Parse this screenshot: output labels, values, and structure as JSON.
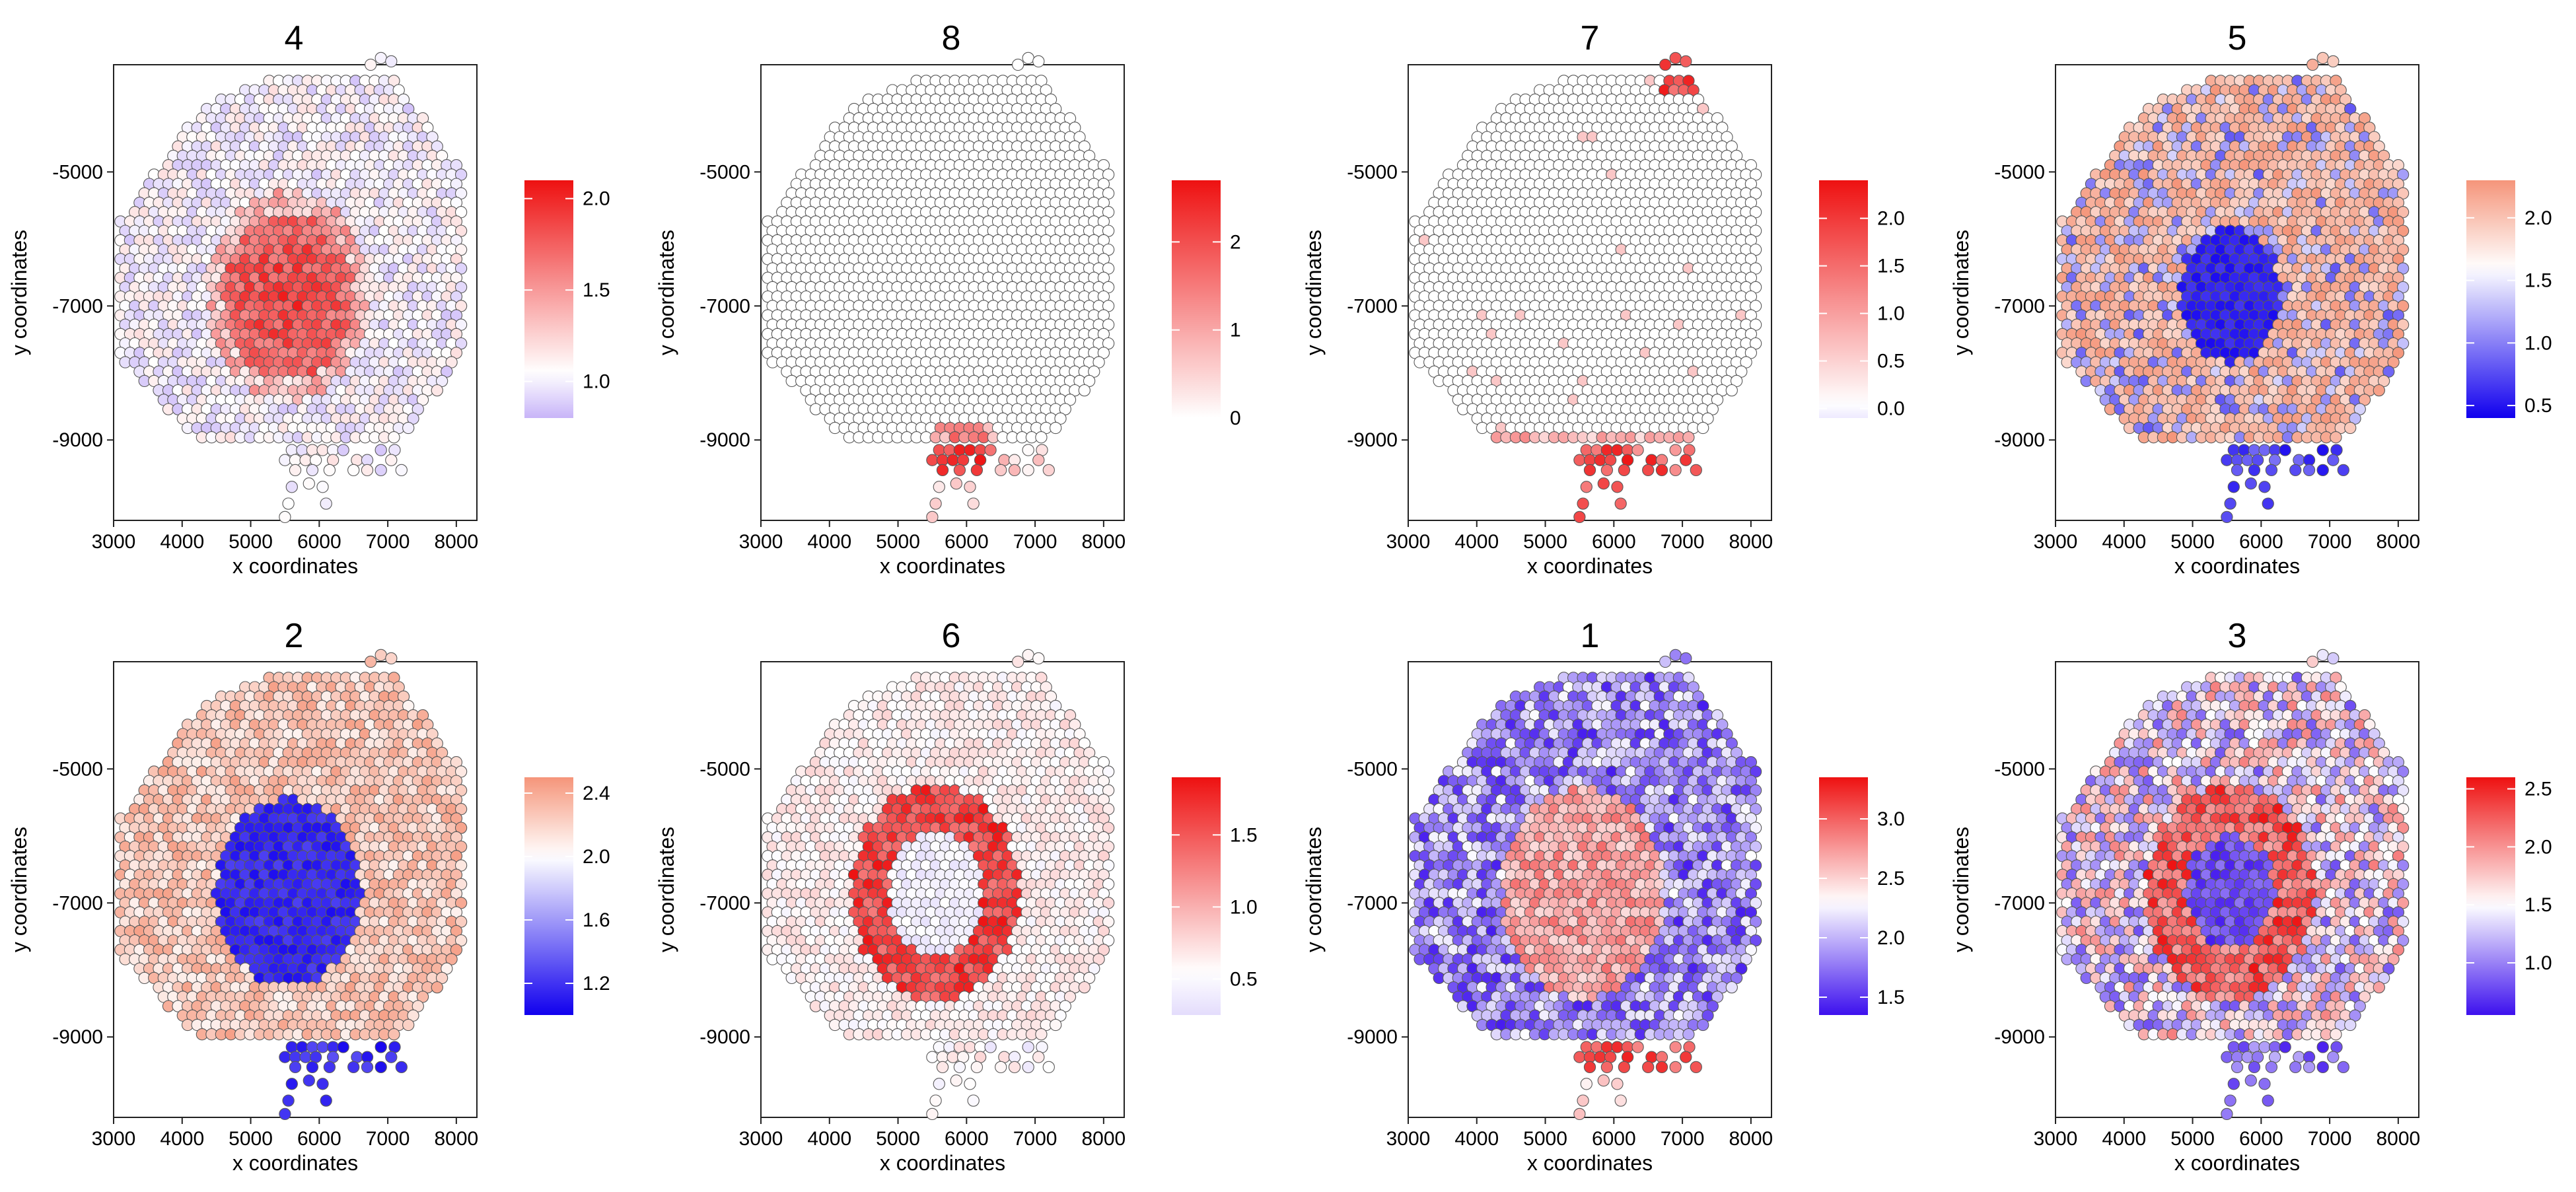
{
  "chart_data": [
    {
      "type": "scatter",
      "title": "4",
      "xlabel": "x coordinates",
      "ylabel": "y coordinates",
      "xlim": [
        3000,
        8300
      ],
      "ylim": [
        -10200,
        -3400
      ],
      "x_ticks": [
        "3000",
        "4000",
        "5000",
        "6000",
        "7000",
        "8000"
      ],
      "y_ticks": [
        "-5000",
        "-7000",
        "-9000"
      ],
      "pattern": "core",
      "color_range": [
        0.8,
        2.1
      ],
      "colorbar": {
        "ticks": [
          "1.0",
          "1.5",
          "2.0"
        ],
        "tick_values": [
          1.0,
          1.5,
          2.0
        ],
        "low": "#c8b4f8",
        "mid": "#ffffff",
        "high": "#ee1111",
        "mid_value": 1.05
      }
    },
    {
      "type": "scatter",
      "title": "8",
      "xlabel": "x coordinates",
      "ylabel": "y coordinates",
      "xlim": [
        3000,
        8300
      ],
      "ylim": [
        -10200,
        -3400
      ],
      "x_ticks": [
        "3000",
        "4000",
        "5000",
        "6000",
        "7000",
        "8000"
      ],
      "y_ticks": [
        "-5000",
        "-7000",
        "-9000"
      ],
      "pattern": "bottom",
      "color_range": [
        0,
        2.7
      ],
      "colorbar": {
        "ticks": [
          "0",
          "1",
          "2"
        ],
        "tick_values": [
          0,
          1,
          2
        ],
        "low": "#ffffff",
        "mid": "#ffffff",
        "high": "#ee1111",
        "mid_value": 0
      }
    },
    {
      "type": "scatter",
      "title": "7",
      "xlabel": "x coordinates",
      "ylabel": "y coordinates",
      "xlim": [
        3000,
        8300
      ],
      "ylim": [
        -10200,
        -3400
      ],
      "x_ticks": [
        "3000",
        "4000",
        "5000",
        "6000",
        "7000",
        "8000"
      ],
      "y_ticks": [
        "-5000",
        "-7000",
        "-9000"
      ],
      "pattern": "bottom_topright",
      "color_range": [
        -0.1,
        2.4
      ],
      "colorbar": {
        "ticks": [
          "0.0",
          "0.5",
          "1.0",
          "1.5",
          "2.0"
        ],
        "tick_values": [
          0,
          0.5,
          1,
          1.5,
          2
        ],
        "low": "#eeeaff",
        "mid": "#ffffff",
        "high": "#ee1111",
        "mid_value": 0.05
      }
    },
    {
      "type": "scatter",
      "title": "5",
      "xlabel": "x coordinates",
      "ylabel": "y coordinates",
      "xlim": [
        3000,
        8300
      ],
      "ylim": [
        -10200,
        -3400
      ],
      "x_ticks": [
        "3000",
        "4000",
        "5000",
        "6000",
        "7000",
        "8000"
      ],
      "y_ticks": [
        "-5000",
        "-7000",
        "-9000"
      ],
      "pattern": "inverse_core",
      "color_range": [
        0.4,
        2.3
      ],
      "colorbar": {
        "ticks": [
          "0.5",
          "1.0",
          "1.5",
          "2.0"
        ],
        "tick_values": [
          0.5,
          1,
          1.5,
          2
        ],
        "low": "#1100ee",
        "mid": "#ffffff",
        "high": "#f5957a",
        "mid_value": 1.6
      }
    },
    {
      "type": "scatter",
      "title": "2",
      "xlabel": "x coordinates",
      "ylabel": "y coordinates",
      "xlim": [
        3000,
        8300
      ],
      "ylim": [
        -10200,
        -3400
      ],
      "x_ticks": [
        "3000",
        "4000",
        "5000",
        "6000",
        "7000",
        "8000"
      ],
      "y_ticks": [
        "-5000",
        "-7000",
        "-9000"
      ],
      "pattern": "inverse_big",
      "color_range": [
        1.0,
        2.5
      ],
      "colorbar": {
        "ticks": [
          "1.2",
          "1.6",
          "2.0",
          "2.4"
        ],
        "tick_values": [
          1.2,
          1.6,
          2.0,
          2.4
        ],
        "low": "#1100ee",
        "mid": "#ffffff",
        "high": "#f5957a",
        "mid_value": 2.0
      }
    },
    {
      "type": "scatter",
      "title": "6",
      "xlabel": "x coordinates",
      "ylabel": "y coordinates",
      "xlim": [
        3000,
        8300
      ],
      "ylim": [
        -10200,
        -3400
      ],
      "x_ticks": [
        "3000",
        "4000",
        "5000",
        "6000",
        "7000",
        "8000"
      ],
      "y_ticks": [
        "-5000",
        "-7000",
        "-9000"
      ],
      "pattern": "ring",
      "color_range": [
        0.25,
        1.9
      ],
      "colorbar": {
        "ticks": [
          "0.5",
          "1.0",
          "1.5"
        ],
        "tick_values": [
          0.5,
          1.0,
          1.5
        ],
        "low": "#e4dcfc",
        "mid": "#ffffff",
        "high": "#ee1111",
        "mid_value": 0.55
      }
    },
    {
      "type": "scatter",
      "title": "1",
      "xlabel": "x coordinates",
      "ylabel": "y coordinates",
      "xlim": [
        3000,
        8300
      ],
      "ylim": [
        -10200,
        -3400
      ],
      "x_ticks": [
        "3000",
        "4000",
        "5000",
        "6000",
        "7000",
        "8000"
      ],
      "y_ticks": [
        "-5000",
        "-7000",
        "-9000"
      ],
      "pattern": "edge",
      "color_range": [
        1.35,
        3.35
      ],
      "colorbar": {
        "ticks": [
          "1.5",
          "2.0",
          "2.5",
          "3.0"
        ],
        "tick_values": [
          1.5,
          2.0,
          2.5,
          3.0
        ],
        "low": "#3d10ee",
        "mid": "#ffffff",
        "high": "#ee1111",
        "mid_value": 2.3
      }
    },
    {
      "type": "scatter",
      "title": "3",
      "xlabel": "x coordinates",
      "ylabel": "y coordinates",
      "xlim": [
        3000,
        8300
      ],
      "ylim": [
        -10200,
        -3400
      ],
      "x_ticks": [
        "3000",
        "4000",
        "5000",
        "6000",
        "7000",
        "8000"
      ],
      "y_ticks": [
        "-5000",
        "-7000",
        "-9000"
      ],
      "pattern": "ring_core",
      "color_range": [
        0.55,
        2.6
      ],
      "colorbar": {
        "ticks": [
          "1.0",
          "1.5",
          "2.0",
          "2.5"
        ],
        "tick_values": [
          1.0,
          1.5,
          2.0,
          2.5
        ],
        "low": "#3d10ee",
        "mid": "#ffffff",
        "high": "#ee1111",
        "mid_value": 1.5
      }
    }
  ]
}
